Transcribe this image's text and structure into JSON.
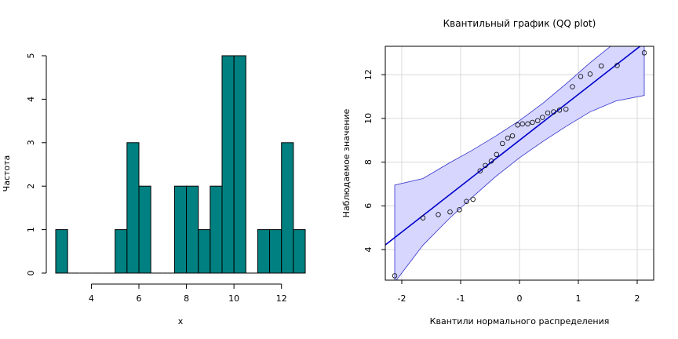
{
  "chart_data": [
    {
      "type": "bar",
      "title": "",
      "xlabel": "x",
      "ylabel": "Частота",
      "bin_width": 0.5,
      "xticks": [
        4,
        6,
        8,
        10,
        12
      ],
      "yticks": [
        0,
        1,
        2,
        3,
        4,
        5
      ],
      "xlim": [
        2.5,
        13
      ],
      "ylim": [
        0,
        5
      ],
      "grid": false,
      "bar_color": "#008080",
      "bins": [
        {
          "x0": 2.5,
          "count": 1
        },
        {
          "x0": 3.0,
          "count": 0
        },
        {
          "x0": 3.5,
          "count": 0
        },
        {
          "x0": 4.0,
          "count": 0
        },
        {
          "x0": 4.5,
          "count": 0
        },
        {
          "x0": 5.0,
          "count": 1
        },
        {
          "x0": 5.5,
          "count": 3
        },
        {
          "x0": 6.0,
          "count": 2
        },
        {
          "x0": 6.5,
          "count": 0
        },
        {
          "x0": 7.0,
          "count": 0
        },
        {
          "x0": 7.5,
          "count": 2
        },
        {
          "x0": 8.0,
          "count": 2
        },
        {
          "x0": 8.5,
          "count": 1
        },
        {
          "x0": 9.0,
          "count": 2
        },
        {
          "x0": 9.5,
          "count": 5
        },
        {
          "x0": 10.0,
          "count": 5
        },
        {
          "x0": 10.5,
          "count": 0
        },
        {
          "x0": 11.0,
          "count": 1
        },
        {
          "x0": 11.5,
          "count": 1
        },
        {
          "x0": 12.0,
          "count": 3
        },
        {
          "x0": 12.5,
          "count": 1
        }
      ]
    },
    {
      "type": "scatter",
      "title": "Квантильный график (QQ plot)",
      "xlabel": "Квантили нормального распределения",
      "ylabel": "Наблюдаемое значение",
      "xticks": [
        -2,
        -1,
        0,
        1,
        2
      ],
      "yticks": [
        4,
        6,
        8,
        10,
        12
      ],
      "xlim": [
        -2.28,
        2.28
      ],
      "ylim": [
        2.6,
        13.3
      ],
      "grid": true,
      "point_color": "#000000",
      "line_color": "#0000cc",
      "band_fill": "#d6d6ff",
      "band_stroke": "#3333cc",
      "reference_line": {
        "intercept": 9.0,
        "slope": 2.1
      },
      "points": [
        {
          "x": -2.12,
          "y": 2.8
        },
        {
          "x": -1.64,
          "y": 5.45
        },
        {
          "x": -1.38,
          "y": 5.6
        },
        {
          "x": -1.18,
          "y": 5.72
        },
        {
          "x": -1.02,
          "y": 5.82
        },
        {
          "x": -0.9,
          "y": 6.2
        },
        {
          "x": -0.79,
          "y": 6.3
        },
        {
          "x": -0.67,
          "y": 7.6
        },
        {
          "x": -0.58,
          "y": 7.85
        },
        {
          "x": -0.48,
          "y": 8.05
        },
        {
          "x": -0.39,
          "y": 8.35
        },
        {
          "x": -0.29,
          "y": 8.85
        },
        {
          "x": -0.2,
          "y": 9.1
        },
        {
          "x": -0.12,
          "y": 9.2
        },
        {
          "x": -0.03,
          "y": 9.7
        },
        {
          "x": 0.05,
          "y": 9.75
        },
        {
          "x": 0.14,
          "y": 9.75
        },
        {
          "x": 0.22,
          "y": 9.82
        },
        {
          "x": 0.31,
          "y": 9.9
        },
        {
          "x": 0.39,
          "y": 10.05
        },
        {
          "x": 0.48,
          "y": 10.25
        },
        {
          "x": 0.58,
          "y": 10.3
        },
        {
          "x": 0.68,
          "y": 10.38
        },
        {
          "x": 0.79,
          "y": 10.42
        },
        {
          "x": 0.9,
          "y": 11.45
        },
        {
          "x": 1.04,
          "y": 11.92
        },
        {
          "x": 1.2,
          "y": 12.03
        },
        {
          "x": 1.39,
          "y": 12.4
        },
        {
          "x": 1.66,
          "y": 12.42
        },
        {
          "x": 2.12,
          "y": 13.0
        }
      ],
      "band": {
        "x": [
          -2.12,
          -1.64,
          -1.2,
          -0.8,
          -0.4,
          0.0,
          0.4,
          0.8,
          1.2,
          1.64,
          2.12
        ],
        "lower": [
          2.5,
          4.2,
          5.4,
          6.4,
          7.35,
          8.2,
          8.95,
          9.65,
          10.3,
          10.8,
          11.05
        ],
        "upper": [
          6.95,
          7.25,
          7.95,
          8.55,
          9.2,
          9.9,
          10.7,
          11.6,
          12.55,
          13.5,
          14.5
        ]
      }
    }
  ]
}
